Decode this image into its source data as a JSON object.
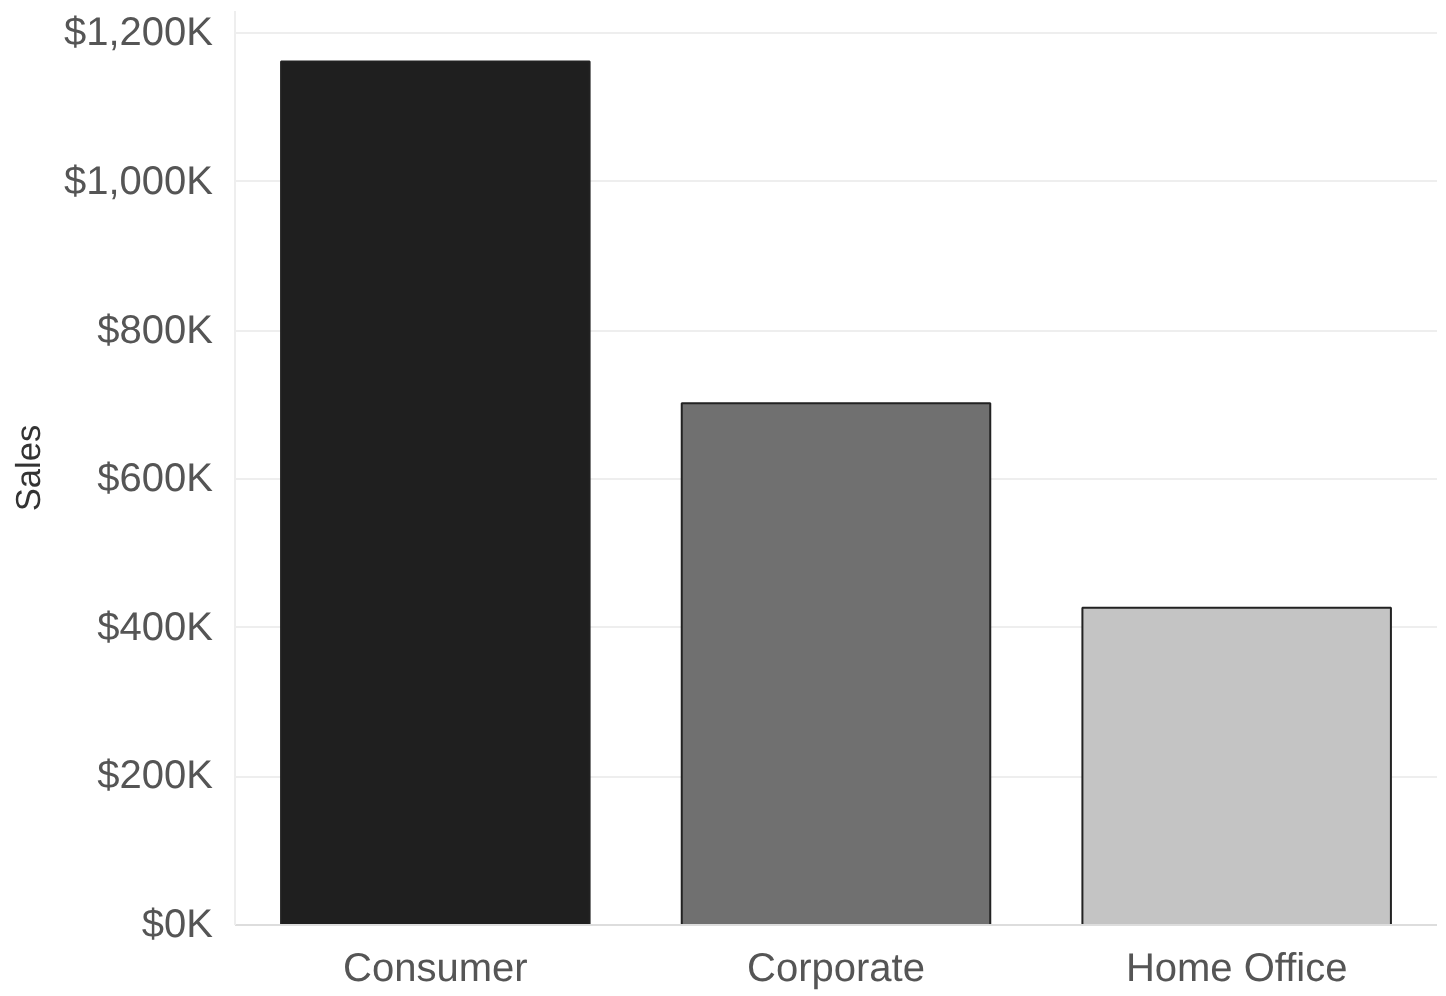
{
  "chart_data": {
    "type": "bar",
    "ylabel": "Sales",
    "categories": [
      "Consumer",
      "Corporate",
      "Home Office"
    ],
    "values": [
      1162,
      702,
      427
    ],
    "colors": [
      "#1f1f1f",
      "#707070",
      "#c4c4c4"
    ],
    "ylim": [
      0,
      1230
    ],
    "yticks": [
      {
        "value": 0,
        "label": "$0K"
      },
      {
        "value": 200,
        "label": "$200K"
      },
      {
        "value": 400,
        "label": "$400K"
      },
      {
        "value": 600,
        "label": "$600K"
      },
      {
        "value": 800,
        "label": "$800K"
      },
      {
        "value": 1000,
        "label": "$1,000K"
      },
      {
        "value": 1200,
        "label": "$1,200K"
      }
    ],
    "grid": "y"
  }
}
